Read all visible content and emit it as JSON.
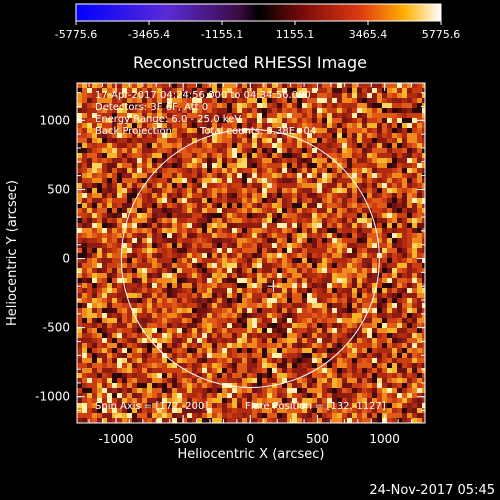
{
  "colorbar": {
    "ticks": [
      "-5775.6",
      "-3465.4",
      "-1155.1",
      "1155.1",
      "3465.4",
      "5775.6"
    ],
    "min": -5775.6,
    "max": 5775.6
  },
  "chart_data": {
    "type": "heatmap",
    "title": "Reconstructed RHESSI Image",
    "xlabel": "Heliocentric X (arcsec)",
    "ylabel": "Heliocentric Y (arcsec)",
    "xlim": [
      -1290,
      1300
    ],
    "ylim": [
      -1190,
      1270
    ],
    "x_ticks": [
      "-1000",
      "-500",
      "0",
      "500",
      "1000"
    ],
    "y_ticks": [
      "-1000",
      "-500",
      "0",
      "500",
      "1000"
    ],
    "annotations": {
      "time_range": "17-Apr-2017 04:24:56.000 to 04:34:56.000",
      "detectors": "Detectors: 3F 6F, Att 0",
      "energy": "Energy Range: 6.0 - 25.0 keV",
      "method": "Back Projection",
      "counts": "Total counts: 5.38E+04",
      "spin_axis": "Spin Axis = [172,-200]",
      "flare_position": "Flare Position = [132,-1127]"
    },
    "solar_limb": {
      "center": [
        0,
        0
      ],
      "radius_arcsec": 960
    },
    "crosshair_at": [
      172,
      -200
    ]
  },
  "footer": {
    "timestamp": "24-Nov-2017 05:45"
  }
}
